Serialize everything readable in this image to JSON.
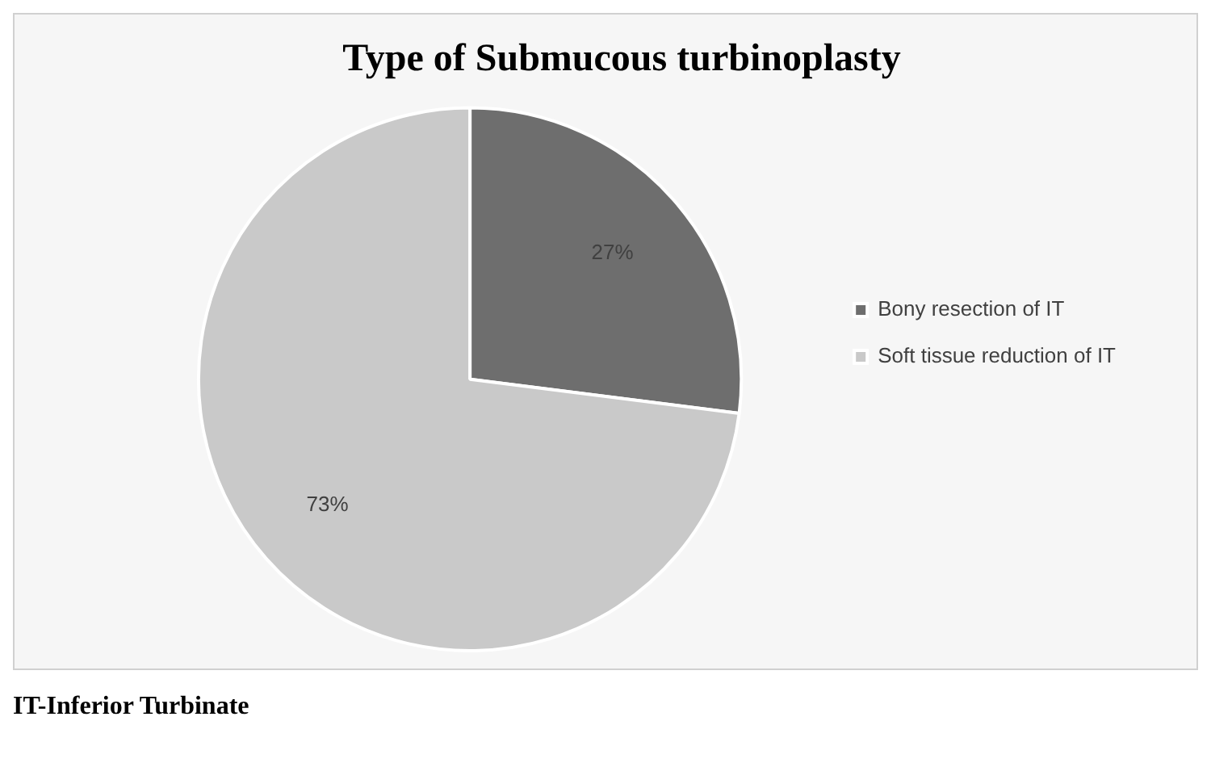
{
  "chart_data": {
    "type": "pie",
    "title": "Type of Submucous turbinoplasty",
    "categories": [
      "Bony resection of IT",
      "Soft tissue reduction of IT"
    ],
    "values": [
      27,
      73
    ],
    "colors": [
      "#6e6e6e",
      "#c9c9c9"
    ],
    "value_labels": [
      "27%",
      "73%"
    ],
    "legend": "right",
    "annotations": [
      "IT-Inferior Turbinate"
    ]
  }
}
